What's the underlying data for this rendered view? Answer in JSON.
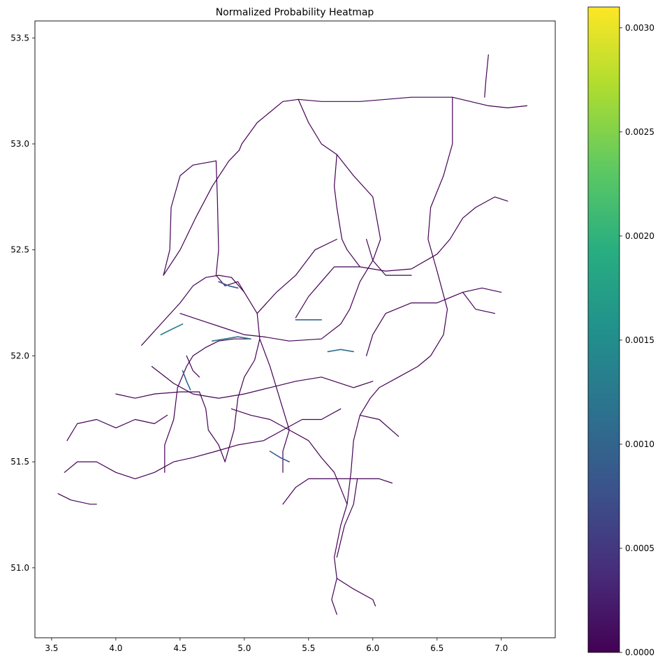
{
  "title": "Normalized Probability Heatmap",
  "chart_data": {
    "type": "heatmap",
    "title": "Normalized Probability Heatmap",
    "xlabel": "",
    "ylabel": "",
    "xlim": [
      3.37,
      7.42
    ],
    "ylim": [
      50.67,
      53.58
    ],
    "x_ticks": [
      "3.5",
      "4.0",
      "4.5",
      "5.0",
      "5.5",
      "6.0",
      "6.5",
      "7.0"
    ],
    "x_tick_values": [
      3.5,
      4.0,
      4.5,
      5.0,
      5.5,
      6.0,
      6.5,
      7.0
    ],
    "y_ticks": [
      "51.0",
      "51.5",
      "52.0",
      "52.5",
      "53.0",
      "53.5"
    ],
    "y_tick_values": [
      51.0,
      51.5,
      52.0,
      52.5,
      53.0,
      53.5
    ],
    "colorbar": {
      "colormap": "viridis",
      "min": 0.0,
      "max": 0.0031,
      "ticks": [
        "0.0000",
        "0.0005",
        "0.0010",
        "0.0015",
        "0.0020",
        "0.0025",
        "0.0030"
      ],
      "tick_values": [
        0.0,
        0.0005,
        0.001,
        0.0015,
        0.002,
        0.0025,
        0.003
      ]
    },
    "default_color": "#440154",
    "roads": [
      {
        "value": 0.0,
        "points": [
          [
            4.96,
            52.97
          ],
          [
            4.98,
            53.0
          ],
          [
            5.1,
            53.1
          ],
          [
            5.3,
            53.2
          ],
          [
            5.42,
            53.21
          ],
          [
            5.6,
            53.2
          ],
          [
            5.9,
            53.2
          ],
          [
            6.1,
            53.21
          ],
          [
            6.3,
            53.22
          ],
          [
            6.5,
            53.22
          ],
          [
            6.62,
            53.22
          ],
          [
            6.9,
            53.18
          ],
          [
            7.05,
            53.17
          ],
          [
            7.2,
            53.18
          ]
        ]
      },
      {
        "value": 0.0,
        "points": [
          [
            4.37,
            52.38
          ],
          [
            4.5,
            52.5
          ],
          [
            4.62,
            52.65
          ],
          [
            4.75,
            52.8
          ],
          [
            4.88,
            52.92
          ],
          [
            4.96,
            52.97
          ]
        ]
      },
      {
        "value": 0.0,
        "points": [
          [
            4.2,
            52.05
          ],
          [
            4.35,
            52.15
          ],
          [
            4.5,
            52.25
          ],
          [
            4.6,
            52.33
          ],
          [
            4.7,
            52.37
          ],
          [
            4.8,
            52.38
          ],
          [
            4.9,
            52.37
          ]
        ]
      },
      {
        "value": 0.0,
        "points": [
          [
            4.37,
            52.38
          ],
          [
            4.42,
            52.5
          ],
          [
            4.43,
            52.7
          ],
          [
            4.5,
            52.85
          ],
          [
            4.6,
            52.9
          ],
          [
            4.78,
            52.92
          ]
        ]
      },
      {
        "value": 0.0,
        "points": [
          [
            4.78,
            52.92
          ],
          [
            4.79,
            52.75
          ],
          [
            4.8,
            52.5
          ],
          [
            4.78,
            52.38
          ]
        ]
      },
      {
        "value": 0.0,
        "points": [
          [
            5.42,
            53.21
          ],
          [
            5.5,
            53.1
          ],
          [
            5.6,
            53.0
          ],
          [
            5.72,
            52.95
          ],
          [
            5.85,
            52.85
          ],
          [
            6.0,
            52.75
          ],
          [
            6.06,
            52.55
          ],
          [
            6.0,
            52.45
          ],
          [
            5.9,
            52.35
          ],
          [
            5.82,
            52.22
          ],
          [
            5.75,
            52.15
          ],
          [
            5.6,
            52.08
          ],
          [
            5.35,
            52.07
          ],
          [
            5.15,
            52.09
          ],
          [
            5.0,
            52.1
          ],
          [
            4.85,
            52.13
          ],
          [
            4.7,
            52.16
          ],
          [
            4.5,
            52.2
          ]
        ]
      },
      {
        "value": 0.0,
        "points": [
          [
            5.72,
            52.95
          ],
          [
            5.7,
            52.8
          ],
          [
            5.72,
            52.7
          ],
          [
            5.76,
            52.55
          ],
          [
            5.8,
            52.5
          ],
          [
            5.9,
            52.42
          ],
          [
            6.1,
            52.4
          ],
          [
            6.3,
            52.41
          ],
          [
            6.5,
            52.48
          ],
          [
            6.6,
            52.55
          ],
          [
            6.7,
            52.65
          ],
          [
            6.8,
            52.7
          ],
          [
            6.95,
            52.75
          ],
          [
            7.05,
            52.73
          ]
        ]
      },
      {
        "value": 0.0,
        "points": [
          [
            6.62,
            53.22
          ],
          [
            6.62,
            53.0
          ],
          [
            6.55,
            52.85
          ],
          [
            6.45,
            52.7
          ],
          [
            6.43,
            52.55
          ],
          [
            6.5,
            52.4
          ],
          [
            6.58,
            52.22
          ],
          [
            6.55,
            52.1
          ],
          [
            6.45,
            52.0
          ],
          [
            6.35,
            51.95
          ],
          [
            6.2,
            51.9
          ],
          [
            6.05,
            51.85
          ],
          [
            5.98,
            51.8
          ],
          [
            5.9,
            51.72
          ],
          [
            5.85,
            51.6
          ],
          [
            5.83,
            51.45
          ],
          [
            5.8,
            51.3
          ],
          [
            5.75,
            51.2
          ],
          [
            5.7,
            51.05
          ],
          [
            5.72,
            50.95
          ],
          [
            5.68,
            50.85
          ],
          [
            5.72,
            50.78
          ]
        ]
      },
      {
        "value": 0.0,
        "points": [
          [
            5.9,
            51.72
          ],
          [
            6.05,
            51.7
          ],
          [
            6.2,
            51.62
          ]
        ]
      },
      {
        "value": 0.0,
        "points": [
          [
            5.2,
            51.7
          ],
          [
            5.35,
            51.65
          ],
          [
            5.5,
            51.6
          ],
          [
            5.6,
            51.52
          ],
          [
            5.7,
            51.45
          ],
          [
            5.8,
            51.3
          ]
        ]
      },
      {
        "value": 0.0,
        "points": [
          [
            5.72,
            50.95
          ],
          [
            5.85,
            50.9
          ],
          [
            6.0,
            50.85
          ],
          [
            6.02,
            50.82
          ]
        ]
      },
      {
        "value": 0.0,
        "points": [
          [
            5.3,
            51.3
          ],
          [
            5.4,
            51.38
          ],
          [
            5.5,
            51.42
          ],
          [
            5.7,
            51.42
          ],
          [
            5.9,
            51.42
          ],
          [
            6.05,
            51.42
          ],
          [
            6.15,
            51.4
          ]
        ]
      },
      {
        "value": 0.0,
        "points": [
          [
            5.88,
            51.42
          ],
          [
            5.85,
            51.3
          ],
          [
            5.78,
            51.2
          ],
          [
            5.72,
            51.05
          ]
        ]
      },
      {
        "value": 0.0,
        "points": [
          [
            4.28,
            51.95
          ],
          [
            4.45,
            51.87
          ],
          [
            4.6,
            51.82
          ],
          [
            4.8,
            51.8
          ],
          [
            5.0,
            51.82
          ],
          [
            5.2,
            51.85
          ],
          [
            5.4,
            51.88
          ],
          [
            5.6,
            51.9
          ],
          [
            5.85,
            51.85
          ],
          [
            6.0,
            51.88
          ]
        ]
      },
      {
        "value": 0.0,
        "points": [
          [
            4.0,
            51.82
          ],
          [
            4.15,
            51.8
          ],
          [
            4.3,
            51.82
          ],
          [
            4.5,
            51.83
          ],
          [
            4.65,
            51.83
          ]
        ]
      },
      {
        "value": 0.0,
        "points": [
          [
            3.6,
            51.45
          ],
          [
            3.7,
            51.5
          ],
          [
            3.85,
            51.5
          ],
          [
            4.0,
            51.45
          ],
          [
            4.15,
            51.42
          ],
          [
            4.3,
            51.45
          ],
          [
            4.45,
            51.5
          ],
          [
            4.6,
            51.52
          ],
          [
            4.78,
            51.55
          ],
          [
            4.95,
            51.58
          ],
          [
            5.15,
            51.6
          ],
          [
            5.3,
            51.65
          ],
          [
            5.45,
            51.7
          ],
          [
            5.6,
            51.7
          ],
          [
            5.75,
            51.75
          ]
        ]
      },
      {
        "value": 0.0,
        "points": [
          [
            3.62,
            51.6
          ],
          [
            3.7,
            51.68
          ],
          [
            3.85,
            51.7
          ],
          [
            4.0,
            51.66
          ],
          [
            4.15,
            51.7
          ],
          [
            4.3,
            51.68
          ],
          [
            4.4,
            51.72
          ]
        ]
      },
      {
        "value": 0.0,
        "points": [
          [
            3.55,
            51.35
          ],
          [
            3.65,
            51.32
          ],
          [
            3.8,
            51.3
          ],
          [
            3.85,
            51.3
          ]
        ]
      },
      {
        "value": 0.0,
        "points": [
          [
            4.38,
            51.45
          ],
          [
            4.38,
            51.58
          ],
          [
            4.45,
            51.7
          ],
          [
            4.48,
            51.85
          ],
          [
            4.55,
            51.95
          ],
          [
            4.6,
            52.0
          ],
          [
            4.7,
            52.04
          ],
          [
            4.8,
            52.07
          ],
          [
            4.92,
            52.08
          ],
          [
            5.05,
            52.08
          ]
        ]
      },
      {
        "value": 0.0,
        "points": [
          [
            4.65,
            51.83
          ],
          [
            4.7,
            51.75
          ],
          [
            4.72,
            51.65
          ],
          [
            4.8,
            51.58
          ],
          [
            4.85,
            51.5
          ]
        ]
      },
      {
        "value": 0.0,
        "points": [
          [
            4.9,
            52.37
          ],
          [
            5.0,
            52.3
          ],
          [
            5.1,
            52.2
          ],
          [
            5.12,
            52.08
          ],
          [
            5.08,
            51.98
          ],
          [
            5.0,
            51.9
          ],
          [
            4.95,
            51.8
          ],
          [
            4.92,
            51.65
          ],
          [
            4.85,
            51.5
          ]
        ]
      },
      {
        "value": 0.0,
        "points": [
          [
            5.12,
            52.08
          ],
          [
            5.2,
            51.95
          ],
          [
            5.25,
            51.85
          ],
          [
            5.3,
            51.75
          ],
          [
            5.35,
            51.65
          ],
          [
            5.3,
            51.55
          ],
          [
            5.3,
            51.45
          ]
        ]
      },
      {
        "value": 0.0,
        "points": [
          [
            5.1,
            52.2
          ],
          [
            5.25,
            52.3
          ],
          [
            5.4,
            52.38
          ],
          [
            5.55,
            52.5
          ],
          [
            5.72,
            52.55
          ]
        ]
      },
      {
        "value": 0.0,
        "points": [
          [
            5.4,
            52.18
          ],
          [
            5.5,
            52.28
          ],
          [
            5.6,
            52.35
          ],
          [
            5.7,
            52.42
          ],
          [
            5.9,
            52.42
          ]
        ]
      },
      {
        "value": 0.0,
        "points": [
          [
            5.95,
            52.0
          ],
          [
            6.0,
            52.1
          ],
          [
            6.1,
            52.2
          ],
          [
            6.3,
            52.25
          ],
          [
            6.5,
            52.25
          ],
          [
            6.7,
            52.3
          ],
          [
            6.85,
            52.32
          ],
          [
            7.0,
            52.3
          ]
        ]
      },
      {
        "value": 0.0,
        "points": [
          [
            6.7,
            52.3
          ],
          [
            6.8,
            52.22
          ],
          [
            6.95,
            52.2
          ]
        ]
      },
      {
        "value": 0.0,
        "points": [
          [
            5.95,
            52.55
          ],
          [
            6.0,
            52.45
          ],
          [
            6.1,
            52.38
          ],
          [
            6.3,
            52.38
          ]
        ]
      },
      {
        "value": 0.0,
        "points": [
          [
            6.9,
            53.42
          ],
          [
            6.88,
            53.3
          ],
          [
            6.87,
            53.22
          ]
        ]
      },
      {
        "value": 0.0,
        "points": [
          [
            4.78,
            52.38
          ],
          [
            4.85,
            52.33
          ],
          [
            4.95,
            52.35
          ],
          [
            5.0,
            52.3
          ]
        ]
      },
      {
        "value": 0.0,
        "points": [
          [
            4.55,
            52.0
          ],
          [
            4.6,
            51.93
          ],
          [
            4.65,
            51.9
          ]
        ]
      },
      {
        "value": 0.0,
        "points": [
          [
            4.9,
            51.75
          ],
          [
            5.05,
            51.72
          ],
          [
            5.2,
            51.7
          ]
        ]
      }
    ],
    "hotspots": [
      {
        "value": 0.0013,
        "points": [
          [
            4.35,
            52.1
          ],
          [
            4.45,
            52.13
          ],
          [
            4.52,
            52.15
          ]
        ]
      },
      {
        "value": 0.0012,
        "points": [
          [
            4.75,
            52.07
          ],
          [
            4.85,
            52.08
          ],
          [
            4.95,
            52.09
          ],
          [
            5.05,
            52.08
          ]
        ]
      },
      {
        "value": 0.0011,
        "points": [
          [
            4.52,
            51.93
          ],
          [
            4.55,
            51.88
          ],
          [
            4.58,
            51.84
          ]
        ]
      },
      {
        "value": 0.0009,
        "points": [
          [
            4.8,
            52.35
          ],
          [
            4.88,
            52.33
          ],
          [
            4.95,
            52.32
          ]
        ]
      },
      {
        "value": 0.001,
        "points": [
          [
            5.4,
            52.17
          ],
          [
            5.5,
            52.17
          ],
          [
            5.6,
            52.17
          ]
        ]
      },
      {
        "value": 0.0011,
        "points": [
          [
            5.65,
            52.02
          ],
          [
            5.75,
            52.03
          ],
          [
            5.85,
            52.02
          ]
        ]
      },
      {
        "value": 0.0009,
        "points": [
          [
            5.2,
            51.55
          ],
          [
            5.28,
            51.52
          ],
          [
            5.35,
            51.5
          ]
        ]
      }
    ]
  }
}
